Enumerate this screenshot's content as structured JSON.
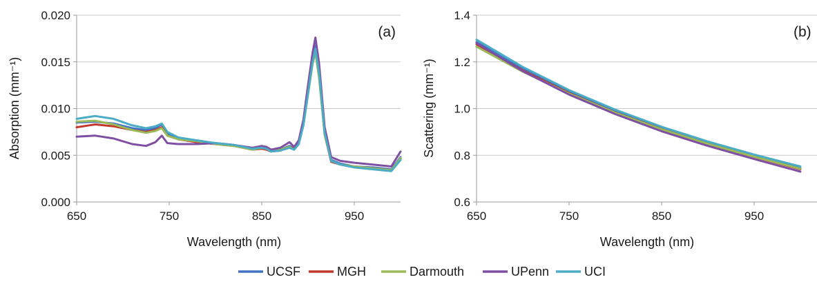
{
  "chart_data": [
    {
      "type": "line",
      "panel_label": "(a)",
      "xlabel": "Wavelength (nm)",
      "ylabel": "Absorption (mm⁻¹)",
      "xlim": [
        650,
        1000
      ],
      "ylim": [
        0,
        0.02
      ],
      "xticks": [
        650,
        750,
        850,
        950
      ],
      "xtick_labels": [
        "650",
        "750",
        "850",
        "950"
      ],
      "yticks": [
        0,
        0.005,
        0.01,
        0.015,
        0.02
      ],
      "ytick_labels": [
        "0.000",
        "0.005",
        "0.010",
        "0.015",
        "0.020"
      ],
      "grid": true,
      "series": [
        {
          "name": "UCSF",
          "x": [
            650,
            670,
            690,
            710,
            725,
            735,
            742,
            748,
            760,
            780,
            800,
            820,
            840,
            850,
            855,
            860,
            870,
            880,
            885,
            890,
            895,
            900,
            905,
            908,
            912,
            918,
            925,
            935,
            950,
            970,
            990,
            1000
          ],
          "values": [
            0.0085,
            0.0086,
            0.0084,
            0.0079,
            0.0077,
            0.0079,
            0.0083,
            0.0073,
            0.0068,
            0.0065,
            0.0063,
            0.0061,
            0.0057,
            0.0058,
            0.0057,
            0.0054,
            0.0056,
            0.006,
            0.0057,
            0.0064,
            0.0085,
            0.012,
            0.0155,
            0.0167,
            0.014,
            0.0075,
            0.0045,
            0.0041,
            0.0038,
            0.0037,
            0.0035,
            0.0048
          ]
        },
        {
          "name": "MGH",
          "x": [
            650,
            670,
            690,
            710,
            725,
            735,
            742,
            748,
            760,
            780,
            800,
            820,
            840,
            850,
            855,
            860,
            870,
            880,
            885,
            890,
            895,
            900,
            905,
            908,
            912,
            918,
            925,
            935,
            950,
            970,
            990,
            1000
          ],
          "values": [
            0.008,
            0.0083,
            0.0081,
            0.0077,
            0.0075,
            0.0077,
            0.008,
            0.0071,
            0.0067,
            0.0064,
            0.0062,
            0.006,
            0.0056,
            0.0057,
            0.0056,
            0.0054,
            0.0055,
            0.0059,
            0.0057,
            0.0063,
            0.0083,
            0.0118,
            0.015,
            0.016,
            0.0135,
            0.0072,
            0.0043,
            0.004,
            0.0038,
            0.0036,
            0.0034,
            0.0046
          ]
        },
        {
          "name": "Darmouth",
          "x": [
            650,
            670,
            690,
            710,
            725,
            735,
            742,
            748,
            760,
            780,
            800,
            820,
            840,
            850,
            855,
            860,
            870,
            880,
            885,
            890,
            895,
            900,
            905,
            908,
            912,
            918,
            925,
            935,
            950,
            970,
            990,
            1000
          ],
          "values": [
            0.0086,
            0.0087,
            0.0083,
            0.0077,
            0.0074,
            0.0076,
            0.0079,
            0.0071,
            0.0067,
            0.0065,
            0.0062,
            0.006,
            0.0056,
            0.0058,
            0.0057,
            0.0055,
            0.0056,
            0.0059,
            0.0056,
            0.0062,
            0.0082,
            0.0115,
            0.0148,
            0.016,
            0.0132,
            0.0072,
            0.0044,
            0.004,
            0.0038,
            0.0036,
            0.0034,
            0.0047
          ]
        },
        {
          "name": "UPenn",
          "x": [
            650,
            670,
            690,
            710,
            725,
            735,
            742,
            748,
            760,
            780,
            800,
            820,
            840,
            850,
            855,
            860,
            870,
            880,
            885,
            890,
            895,
            900,
            905,
            908,
            912,
            918,
            925,
            935,
            950,
            970,
            990,
            1000
          ],
          "values": [
            0.007,
            0.0071,
            0.0068,
            0.0062,
            0.006,
            0.0064,
            0.0071,
            0.0063,
            0.0062,
            0.0062,
            0.0063,
            0.0061,
            0.0058,
            0.006,
            0.0059,
            0.0056,
            0.0058,
            0.0064,
            0.0059,
            0.0066,
            0.0088,
            0.0125,
            0.016,
            0.0176,
            0.0148,
            0.008,
            0.0048,
            0.0044,
            0.0042,
            0.004,
            0.0038,
            0.0054
          ]
        },
        {
          "name": "UCI",
          "x": [
            650,
            670,
            690,
            710,
            725,
            735,
            742,
            748,
            760,
            780,
            800,
            820,
            840,
            850,
            855,
            860,
            870,
            880,
            885,
            890,
            895,
            900,
            905,
            908,
            912,
            918,
            925,
            935,
            950,
            970,
            990,
            1000
          ],
          "values": [
            0.0089,
            0.0092,
            0.0089,
            0.0082,
            0.0079,
            0.0081,
            0.0084,
            0.0075,
            0.0069,
            0.0066,
            0.0063,
            0.0061,
            0.0057,
            0.0058,
            0.0057,
            0.0054,
            0.0055,
            0.0058,
            0.0056,
            0.0062,
            0.0082,
            0.0116,
            0.015,
            0.0164,
            0.0138,
            0.0074,
            0.0044,
            0.004,
            0.0037,
            0.0035,
            0.0033,
            0.0045
          ]
        }
      ]
    },
    {
      "type": "line",
      "panel_label": "(b)",
      "xlabel": "Wavelength (nm)",
      "ylabel": "Scattering (mm⁻¹)",
      "xlim": [
        650,
        1000
      ],
      "ylim": [
        0.6,
        1.4
      ],
      "xticks": [
        650,
        750,
        850,
        950
      ],
      "xtick_labels": [
        "650",
        "750",
        "850",
        "950"
      ],
      "yticks": [
        0.6,
        0.8,
        1.0,
        1.2,
        1.4
      ],
      "ytick_labels": [
        "0.6",
        "0.8",
        "1.0",
        "1.2",
        "1.4"
      ],
      "grid": true,
      "series": [
        {
          "name": "UCSF",
          "x": [
            650,
            700,
            750,
            800,
            850,
            900,
            950,
            1000
          ],
          "values": [
            1.285,
            1.17,
            1.072,
            0.988,
            0.916,
            0.853,
            0.797,
            0.745
          ]
        },
        {
          "name": "MGH",
          "x": [
            650,
            700,
            750,
            800,
            850,
            900,
            950,
            1000
          ],
          "values": [
            1.275,
            1.163,
            1.066,
            0.983,
            0.912,
            0.849,
            0.793,
            0.74
          ]
        },
        {
          "name": "Darmouth",
          "x": [
            650,
            700,
            750,
            800,
            850,
            900,
            950,
            1000
          ],
          "values": [
            1.265,
            1.158,
            1.064,
            0.982,
            0.911,
            0.849,
            0.794,
            0.742
          ]
        },
        {
          "name": "UPenn",
          "x": [
            650,
            700,
            750,
            800,
            850,
            900,
            950,
            1000
          ],
          "values": [
            1.28,
            1.16,
            1.06,
            0.976,
            0.903,
            0.84,
            0.784,
            0.73
          ]
        },
        {
          "name": "UCI",
          "x": [
            650,
            700,
            750,
            800,
            850,
            900,
            950,
            1000
          ],
          "values": [
            1.295,
            1.178,
            1.079,
            0.995,
            0.922,
            0.859,
            0.803,
            0.752
          ]
        }
      ]
    }
  ],
  "legend": {
    "position": "bottom-center",
    "items": [
      {
        "name": "UCSF",
        "color": "#4472c4"
      },
      {
        "name": "MGH",
        "color": "#c0392b"
      },
      {
        "name": "Darmouth",
        "color": "#9bbb59"
      },
      {
        "name": "UPenn",
        "color": "#7e4fa3"
      },
      {
        "name": "UCI",
        "color": "#4bacc6"
      }
    ]
  }
}
